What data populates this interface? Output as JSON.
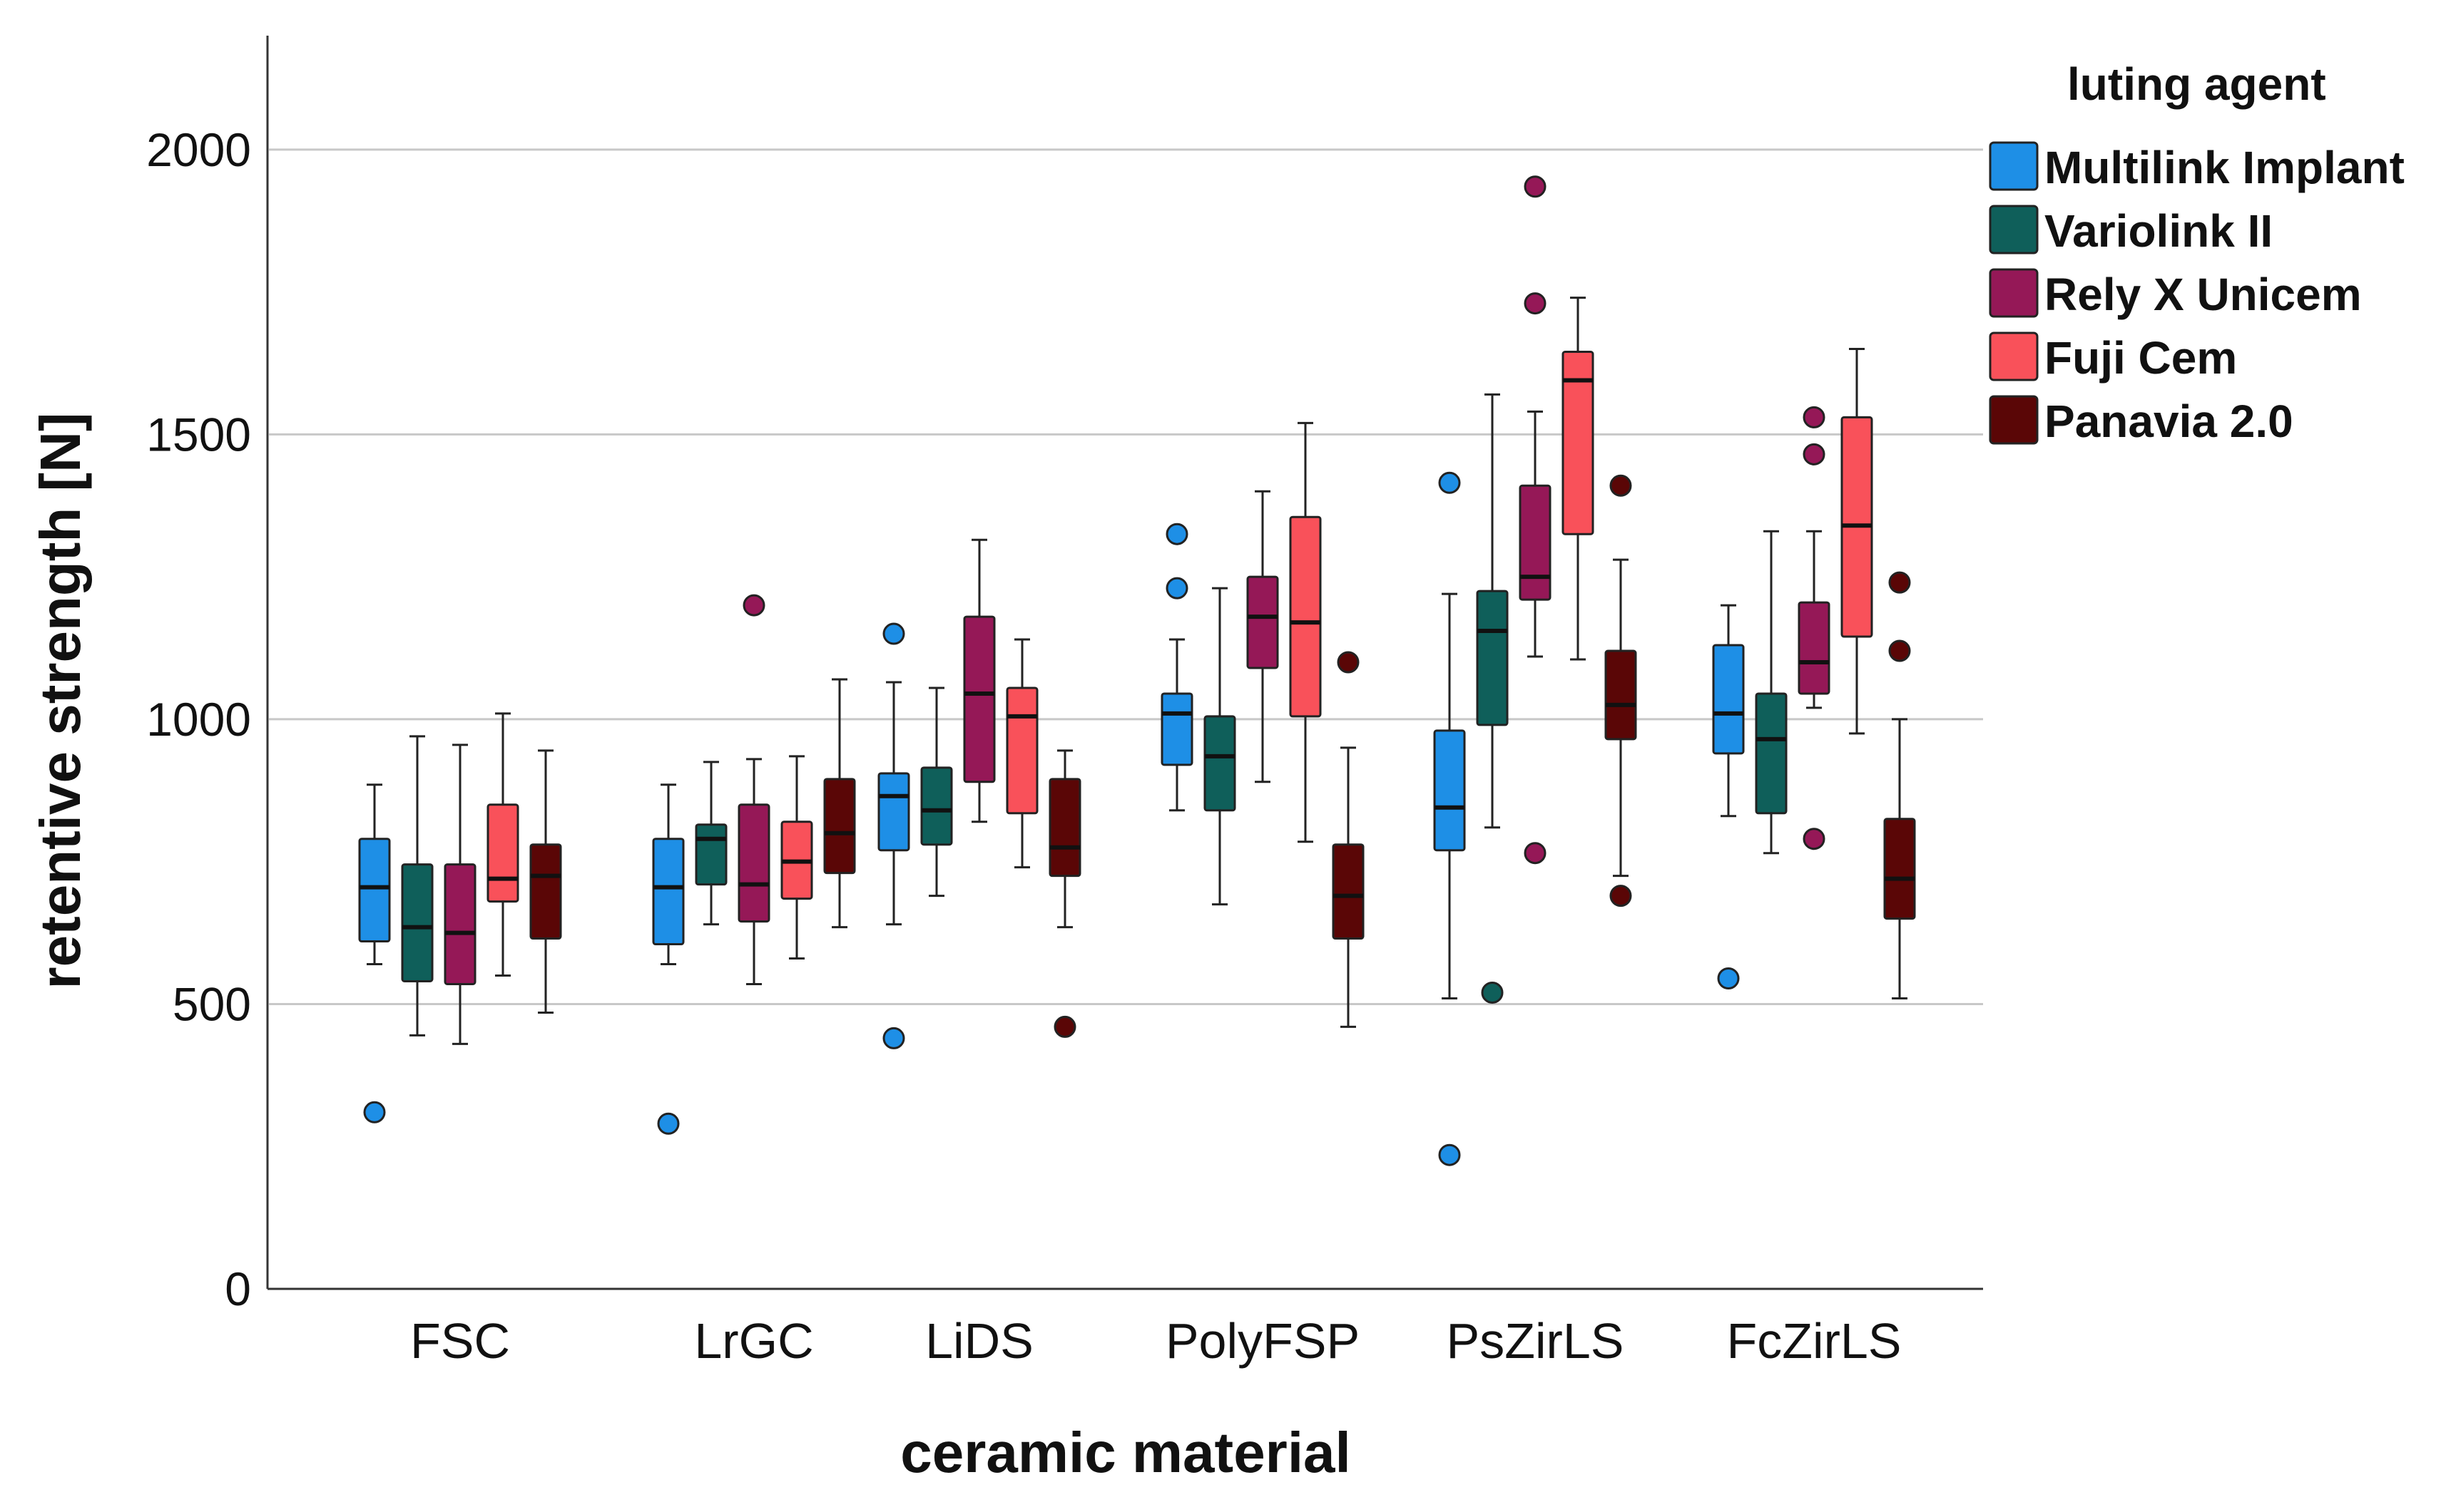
{
  "chart_data": {
    "type": "boxplot",
    "xlabel": "ceramic material",
    "ylabel": "retentive strength [N]",
    "ylim": [
      0,
      2200
    ],
    "yticks": [
      0,
      500,
      1000,
      1500,
      2000
    ],
    "grid": true,
    "legend_title": "luting agent",
    "legend_position": "top-right",
    "categories": [
      "FSC",
      "LrGC",
      "LiDS",
      "PolyFSP",
      "PsZirLS",
      "FcZirLS"
    ],
    "series": [
      {
        "name": "Multilink Implant",
        "color": "#1e8fe6",
        "boxes": [
          {
            "min": 570,
            "q1": 610,
            "median": 705,
            "q3": 790,
            "max": 885,
            "outliers": [
              310
            ]
          },
          {
            "min": 570,
            "q1": 605,
            "median": 705,
            "q3": 790,
            "max": 885,
            "outliers": [
              290
            ]
          },
          {
            "min": 640,
            "q1": 770,
            "median": 865,
            "q3": 905,
            "max": 1065,
            "outliers": [
              1150,
              440
            ]
          },
          {
            "min": 840,
            "q1": 920,
            "median": 1010,
            "q3": 1045,
            "max": 1140,
            "outliers": [
              1325,
              1230
            ]
          },
          {
            "min": 510,
            "q1": 770,
            "median": 845,
            "q3": 980,
            "max": 1220,
            "outliers": [
              1415,
              235
            ]
          },
          {
            "min": 830,
            "q1": 940,
            "median": 1010,
            "q3": 1130,
            "max": 1200,
            "outliers": [
              545
            ]
          }
        ]
      },
      {
        "name": "Variolink II",
        "color": "#0f5f5a",
        "boxes": [
          {
            "min": 445,
            "q1": 540,
            "median": 635,
            "q3": 745,
            "max": 970,
            "outliers": []
          },
          {
            "min": 640,
            "q1": 710,
            "median": 790,
            "q3": 815,
            "max": 925,
            "outliers": []
          },
          {
            "min": 690,
            "q1": 780,
            "median": 840,
            "q3": 915,
            "max": 1055,
            "outliers": []
          },
          {
            "min": 675,
            "q1": 840,
            "median": 935,
            "q3": 1005,
            "max": 1230,
            "outliers": []
          },
          {
            "min": 810,
            "q1": 990,
            "median": 1155,
            "q3": 1225,
            "max": 1570,
            "outliers": [
              520
            ]
          },
          {
            "min": 765,
            "q1": 835,
            "median": 965,
            "q3": 1045,
            "max": 1330,
            "outliers": []
          }
        ]
      },
      {
        "name": "Rely X Unicem",
        "color": "#951857",
        "boxes": [
          {
            "min": 430,
            "q1": 535,
            "median": 625,
            "q3": 745,
            "max": 955,
            "outliers": []
          },
          {
            "min": 535,
            "q1": 645,
            "median": 710,
            "q3": 850,
            "max": 930,
            "outliers": [
              1200
            ]
          },
          {
            "min": 820,
            "q1": 890,
            "median": 1045,
            "q3": 1180,
            "max": 1315,
            "outliers": []
          },
          {
            "min": 890,
            "q1": 1090,
            "median": 1180,
            "q3": 1250,
            "max": 1400,
            "outliers": []
          },
          {
            "min": 1110,
            "q1": 1210,
            "median": 1250,
            "q3": 1410,
            "max": 1540,
            "outliers": [
              1935,
              1730,
              765
            ]
          },
          {
            "min": 1020,
            "q1": 1045,
            "median": 1100,
            "q3": 1205,
            "max": 1330,
            "outliers": [
              1530,
              1465,
              790
            ]
          }
        ]
      },
      {
        "name": "Fuji Cem",
        "color": "#f9515a",
        "boxes": [
          {
            "min": 550,
            "q1": 680,
            "median": 720,
            "q3": 850,
            "max": 1010,
            "outliers": []
          },
          {
            "min": 580,
            "q1": 685,
            "median": 750,
            "q3": 820,
            "max": 935,
            "outliers": []
          },
          {
            "min": 740,
            "q1": 835,
            "median": 1005,
            "q3": 1055,
            "max": 1140,
            "outliers": []
          },
          {
            "min": 785,
            "q1": 1005,
            "median": 1170,
            "q3": 1355,
            "max": 1520,
            "outliers": []
          },
          {
            "min": 1105,
            "q1": 1325,
            "median": 1595,
            "q3": 1645,
            "max": 1740,
            "outliers": []
          },
          {
            "min": 975,
            "q1": 1145,
            "median": 1340,
            "q3": 1530,
            "max": 1650,
            "outliers": []
          }
        ]
      },
      {
        "name": "Panavia 2.0",
        "color": "#5a0606",
        "boxes": [
          {
            "min": 485,
            "q1": 615,
            "median": 725,
            "q3": 780,
            "max": 945,
            "outliers": []
          },
          {
            "min": 635,
            "q1": 730,
            "median": 800,
            "q3": 895,
            "max": 1070,
            "outliers": []
          },
          {
            "min": 635,
            "q1": 725,
            "median": 775,
            "q3": 895,
            "max": 945,
            "outliers": [
              460
            ]
          },
          {
            "min": 460,
            "q1": 615,
            "median": 690,
            "q3": 780,
            "max": 950,
            "outliers": [
              1100
            ]
          },
          {
            "min": 725,
            "q1": 965,
            "median": 1025,
            "q3": 1120,
            "max": 1280,
            "outliers": [
              1410,
              690
            ]
          },
          {
            "min": 510,
            "q1": 650,
            "median": 720,
            "q3": 825,
            "max": 1000,
            "outliers": [
              1240,
              1120
            ]
          }
        ]
      }
    ]
  }
}
